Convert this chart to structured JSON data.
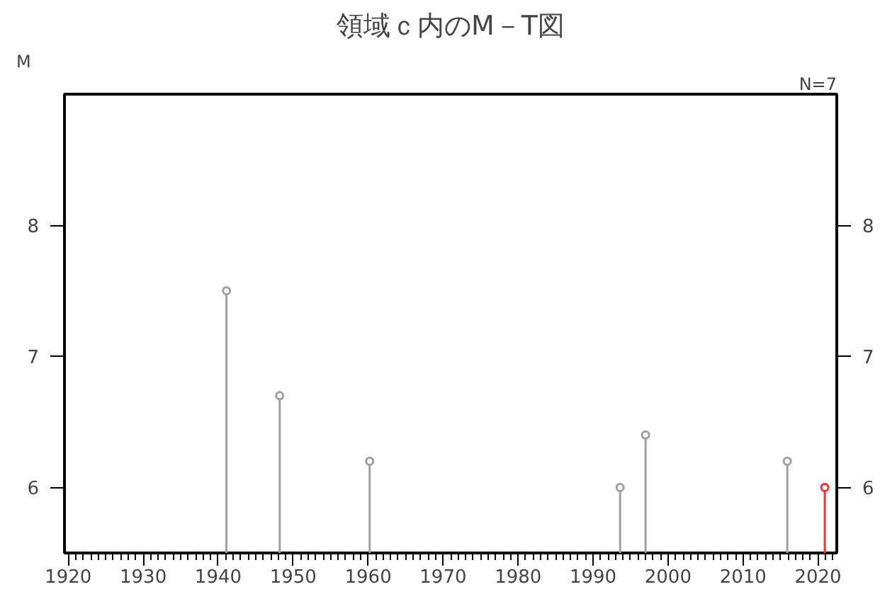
{
  "chart_data": {
    "type": "lollipop",
    "title": "領域ｃ内のM－T図",
    "ylabel": "M",
    "annotations": [
      "N=7"
    ],
    "x": [
      1941.1,
      1948.2,
      1960.2,
      1993.6,
      1997.0,
      2015.9,
      2020.9
    ],
    "values": [
      7.5,
      6.7,
      6.2,
      6.0,
      6.4,
      6.2,
      6.0
    ],
    "colors": [
      "#a0a0a0",
      "#a0a0a0",
      "#a0a0a0",
      "#a0a0a0",
      "#a0a0a0",
      "#a0a0a0",
      "#ff3030"
    ],
    "marker": "circle",
    "grid": false,
    "xlim": [
      1919.5,
      2022.5
    ],
    "ylim": [
      5.5,
      9.0
    ],
    "y2lim": [
      5.5,
      9.0
    ],
    "yticks": [
      6,
      7,
      8
    ],
    "y2ticks": [
      6,
      7,
      8
    ],
    "xticks": [
      1920,
      {
        "value": 1921,
        "label": null
      },
      {
        "value": 1922,
        "label": null
      },
      {
        "value": 1923,
        "label": null
      },
      {
        "value": 1924,
        "label": null
      },
      {
        "value": 1925,
        "label": null
      },
      {
        "value": 1926,
        "label": null
      },
      {
        "value": 1927,
        "label": null
      },
      {
        "value": 1928,
        "label": null
      },
      {
        "value": 1929,
        "label": null
      },
      1930,
      {
        "value": 1931,
        "label": null
      },
      {
        "value": 1932,
        "label": null
      },
      {
        "value": 1933,
        "label": null
      },
      {
        "value": 1934,
        "label": null
      },
      {
        "value": 1935,
        "label": null
      },
      {
        "value": 1936,
        "label": null
      },
      {
        "value": 1937,
        "label": null
      },
      {
        "value": 1938,
        "label": null
      },
      {
        "value": 1939,
        "label": null
      },
      1940,
      {
        "value": 1941,
        "label": null
      },
      {
        "value": 1942,
        "label": null
      },
      {
        "value": 1943,
        "label": null
      },
      {
        "value": 1944,
        "label": null
      },
      {
        "value": 1945,
        "label": null
      },
      {
        "value": 1946,
        "label": null
      },
      {
        "value": 1947,
        "label": null
      },
      {
        "value": 1948,
        "label": null
      },
      {
        "value": 1949,
        "label": null
      },
      1950,
      {
        "value": 1951,
        "label": null
      },
      {
        "value": 1952,
        "label": null
      },
      {
        "value": 1953,
        "label": null
      },
      {
        "value": 1954,
        "label": null
      },
      {
        "value": 1955,
        "label": null
      },
      {
        "value": 1956,
        "label": null
      },
      {
        "value": 1957,
        "label": null
      },
      {
        "value": 1958,
        "label": null
      },
      {
        "value": 1959,
        "label": null
      },
      1960,
      {
        "value": 1961,
        "label": null
      },
      {
        "value": 1962,
        "label": null
      },
      {
        "value": 1963,
        "label": null
      },
      {
        "value": 1964,
        "label": null
      },
      {
        "value": 1965,
        "label": null
      },
      {
        "value": 1966,
        "label": null
      },
      {
        "value": 1967,
        "label": null
      },
      {
        "value": 1968,
        "label": null
      },
      {
        "value": 1969,
        "label": null
      },
      1970,
      {
        "value": 1971,
        "label": null
      },
      {
        "value": 1972,
        "label": null
      },
      {
        "value": 1973,
        "label": null
      },
      {
        "value": 1974,
        "label": null
      },
      {
        "value": 1975,
        "label": null
      },
      {
        "value": 1976,
        "label": null
      },
      {
        "value": 1977,
        "label": null
      },
      {
        "value": 1978,
        "label": null
      },
      {
        "value": 1979,
        "label": null
      },
      1980,
      {
        "value": 1981,
        "label": null
      },
      {
        "value": 1982,
        "label": null
      },
      {
        "value": 1983,
        "label": null
      },
      {
        "value": 1984,
        "label": null
      },
      {
        "value": 1985,
        "label": null
      },
      {
        "value": 1986,
        "label": null
      },
      {
        "value": 1987,
        "label": null
      },
      {
        "value": 1988,
        "label": null
      },
      {
        "value": 1989,
        "label": null
      },
      1990,
      {
        "value": 1991,
        "label": null
      },
      {
        "value": 1992,
        "label": null
      },
      {
        "value": 1993,
        "label": null
      },
      {
        "value": 1994,
        "label": null
      },
      {
        "value": 1995,
        "label": null
      },
      {
        "value": 1996,
        "label": null
      },
      {
        "value": 1997,
        "label": null
      },
      {
        "value": 1998,
        "label": null
      },
      {
        "value": 1999,
        "label": null
      },
      2000,
      {
        "value": 2001,
        "label": null
      },
      {
        "value": 2002,
        "label": null
      },
      {
        "value": 2003,
        "label": null
      },
      {
        "value": 2004,
        "label": null
      },
      {
        "value": 2005,
        "label": null
      },
      {
        "value": 2006,
        "label": null
      },
      {
        "value": 2007,
        "label": null
      },
      {
        "value": 2008,
        "label": null
      },
      {
        "value": 2009,
        "label": null
      },
      2010,
      {
        "value": 2011,
        "label": null
      },
      {
        "value": 2012,
        "label": null
      },
      {
        "value": 2013,
        "label": null
      },
      {
        "value": 2014,
        "label": null
      },
      {
        "value": 2015,
        "label": null
      },
      {
        "value": 2016,
        "label": null
      },
      {
        "value": 2017,
        "label": null
      },
      {
        "value": 2018,
        "label": null
      },
      {
        "value": 2019,
        "label": null
      },
      2020,
      {
        "value": 2021,
        "label": null
      },
      {
        "value": 2022,
        "label": null
      }
    ]
  }
}
